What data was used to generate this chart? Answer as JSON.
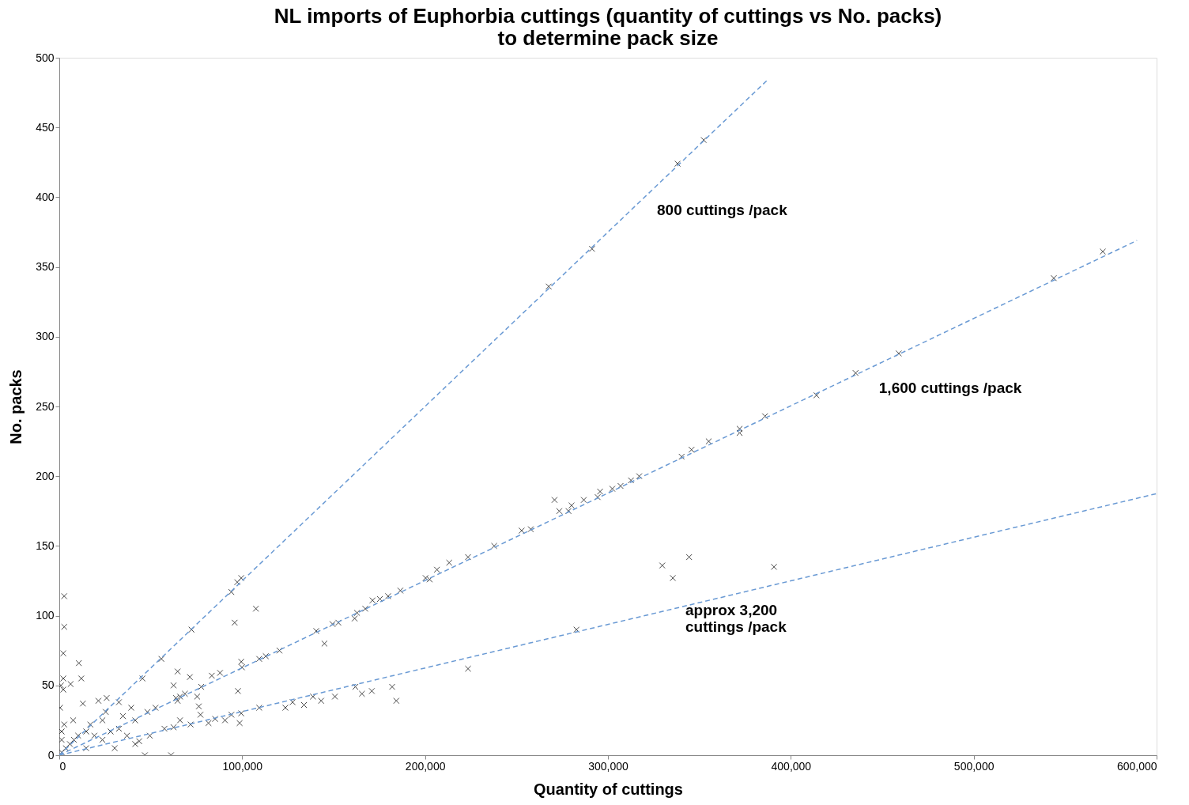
{
  "chart_data": {
    "type": "scatter",
    "title": "NL imports of Euphorbia cuttings (quantity of cuttings vs No. packs) to determine pack size",
    "xlabel": "Quantity of cuttings",
    "ylabel": "No. packs",
    "xlim": [
      0,
      600000
    ],
    "ylim": [
      0,
      500
    ],
    "xticks": [
      0,
      {
        "value": 100000,
        "label": "100,000"
      },
      {
        "value": 200000,
        "label": "200,000"
      },
      {
        "value": 300000,
        "label": "300,000"
      },
      {
        "value": 400000,
        "label": "400,000"
      },
      {
        "value": 500000,
        "label": "500,000"
      },
      {
        "value": 600000,
        "label": "600,000"
      }
    ],
    "yticks": [
      0,
      50,
      100,
      150,
      200,
      250,
      300,
      350,
      400,
      450,
      500
    ],
    "grid": false,
    "series": [
      {
        "color": "#333333",
        "marker": "cross",
        "x": [
          352400,
          338100,
          291300,
          267600,
          99500,
          97300,
          94100,
          72300,
          55800,
          45500,
          107500,
          95900,
          570600,
          543800,
          459000,
          435400,
          414000,
          385900,
          372000,
          372000,
          355100,
          345700,
          340300,
          317100,
          312600,
          306900,
          302400,
          295700,
          294400,
          286800,
          280100,
          278400,
          273400,
          270800,
          257800,
          252800,
          237800,
          223500,
          213200,
          206500,
          202500,
          200300,
          186500,
          179800,
          175300,
          171300,
          167300,
          162800,
          161500,
          152600,
          149400,
          145000,
          140500,
          120400,
          112900,
          109300,
          99900,
          99500,
          83400,
          77600,
          68700,
          63800,
          282800,
          329700,
          335500,
          344400,
          390800,
          223500,
          182000,
          184300,
          170900,
          165500,
          161900,
          150700,
          143200,
          138700,
          133800,
          127600,
          123600,
          109300,
          99500,
          97700,
          98600,
          94100,
          90600,
          85200,
          81600,
          77200,
          71800,
          66000,
          62500,
          57500,
          49500,
          43700,
          61100,
          46800,
          2700,
          2700,
          2200,
          10700,
          2200,
          900,
          2200,
          12000,
          6200,
          12900,
          7600,
          21400,
          25900,
          32600,
          25400,
          64700,
          71400,
          62500,
          64700,
          66000,
          75400,
          76300,
          87900,
          1300,
          3600,
          5800,
          8000,
          1300,
          10300,
          14700,
          19200,
          23600,
          28100,
          32600,
          37000,
          41500,
          30300,
          14700,
          23600,
          17000,
          34800,
          41500,
          48200,
          52600,
          39300,
          1300,
          2700,
          400
        ],
        "values": [
          441,
          424,
          363,
          336,
          127,
          124,
          117,
          90,
          69,
          55,
          105,
          95,
          361,
          342,
          288,
          274,
          258,
          243,
          234,
          231,
          225,
          219,
          214,
          200,
          197,
          193,
          191,
          189,
          185,
          183,
          179,
          175,
          175,
          183,
          162,
          161,
          150,
          142,
          138,
          133,
          126,
          127,
          118,
          114,
          112,
          111,
          105,
          102,
          98,
          95,
          94,
          80,
          89,
          75,
          71,
          69,
          63,
          67,
          57,
          49,
          44,
          41,
          90,
          136,
          127,
          142,
          135,
          62,
          49,
          39,
          46,
          44,
          49,
          42,
          39,
          42,
          36,
          38,
          34,
          34,
          30,
          46,
          23,
          29,
          25,
          26,
          23,
          29,
          22,
          25,
          20,
          19,
          14,
          10,
          0,
          0,
          114,
          92,
          73,
          66,
          55,
          50,
          47,
          55,
          51,
          37,
          25,
          39,
          41,
          38,
          31,
          60,
          56,
          50,
          39,
          42,
          42,
          35,
          59,
          2,
          5,
          8,
          11,
          11,
          14,
          17,
          14,
          11,
          17,
          19,
          14,
          8,
          5,
          5,
          25,
          22,
          28,
          25,
          31,
          34,
          34,
          17,
          22,
          34
        ]
      },
      {
        "type": "line",
        "color": "#6a9ad4",
        "line_style": "dashed",
        "x": [
          0,
          387200
        ],
        "values": [
          0,
          484
        ]
      },
      {
        "type": "line",
        "color": "#6a9ad4",
        "line_style": "dashed",
        "x": [
          0,
          589300
        ],
        "values": [
          0,
          369
        ]
      },
      {
        "type": "line",
        "color": "#6a9ad4",
        "line_style": "dashed",
        "x": [
          0,
          600000
        ],
        "values": [
          0,
          187.5
        ]
      }
    ],
    "annotations": [
      "800  cuttings /pack",
      "1,600  cuttings /pack",
      "approx 3,200\ncuttings /pack"
    ]
  }
}
